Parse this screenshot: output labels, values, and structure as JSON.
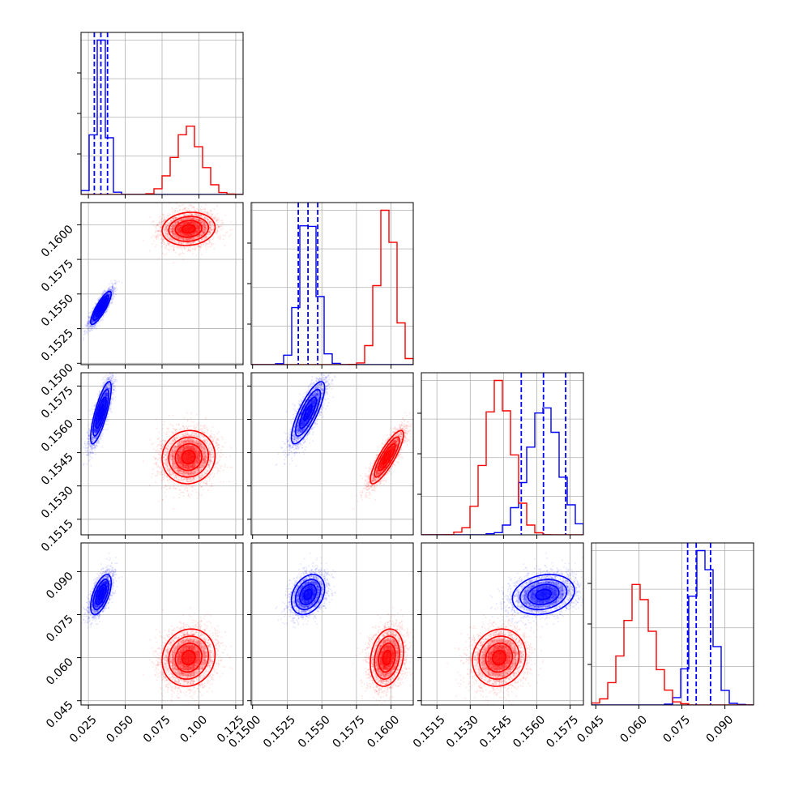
{
  "chart_data": {
    "type": "corner",
    "grid": true,
    "series": [
      {
        "color": "#0000ff",
        "mean": [
          0.0335,
          0.154,
          0.1563,
          0.082
        ],
        "sd": [
          0.0035,
          0.0006,
          0.0007,
          0.0035
        ],
        "corr": [
          [
            1,
            0.85,
            0.8,
            0.6
          ],
          [
            0.85,
            1,
            0.8,
            0.3
          ],
          [
            0.8,
            0.8,
            1,
            0.2
          ],
          [
            0.6,
            0.3,
            0.2,
            1
          ]
        ],
        "quantiles": [
          [
            0.029,
            0.0335,
            0.038
          ],
          [
            0.1533,
            0.154,
            0.1547
          ],
          [
            0.1553,
            0.1563,
            0.1573
          ],
          [
            0.077,
            0.08,
            0.085
          ]
        ]
      },
      {
        "color": "#ff0000",
        "mean": [
          0.093,
          0.1597,
          0.1543,
          0.06
        ],
        "sd": [
          0.009,
          0.0006,
          0.0006,
          0.005
        ],
        "corr": [
          [
            1,
            0.1,
            0.05,
            0.1
          ],
          [
            0.1,
            1,
            0.85,
            0.2
          ],
          [
            0.05,
            0.85,
            1,
            0.1
          ],
          [
            0.1,
            0.2,
            0.1,
            1
          ]
        ],
        "quantiles": []
      }
    ],
    "parameters": [
      {
        "range": [
          0.02,
          0.13
        ],
        "ticks": [
          {
            "v": 0.025,
            "label": "0.025"
          },
          {
            "v": 0.05,
            "label": "0.050"
          },
          {
            "v": 0.075,
            "label": "0.075"
          },
          {
            "v": 0.1,
            "label": "0.100"
          },
          {
            "v": 0.125,
            "label": "0.125"
          }
        ]
      },
      {
        "range": [
          0.1499,
          0.1616
        ],
        "ticks": [
          {
            "v": 0.15,
            "label": "0.1500"
          },
          {
            "v": 0.1525,
            "label": "0.1525"
          },
          {
            "v": 0.155,
            "label": "0.1550"
          },
          {
            "v": 0.1575,
            "label": "0.1575"
          },
          {
            "v": 0.16,
            "label": "0.1600"
          }
        ]
      },
      {
        "range": [
          0.1508,
          0.1581
        ],
        "ticks": [
          {
            "v": 0.1515,
            "label": "0.1515"
          },
          {
            "v": 0.153,
            "label": "0.1530"
          },
          {
            "v": 0.1545,
            "label": "0.1545"
          },
          {
            "v": 0.156,
            "label": "0.1560"
          },
          {
            "v": 0.1575,
            "label": "0.1575"
          }
        ]
      },
      {
        "range": [
          0.0435,
          0.1
        ],
        "ticks": [
          {
            "v": 0.045,
            "label": "0.045"
          },
          {
            "v": 0.06,
            "label": "0.060"
          },
          {
            "v": 0.075,
            "label": "0.075"
          },
          {
            "v": 0.09,
            "label": "0.090"
          }
        ]
      }
    ]
  }
}
